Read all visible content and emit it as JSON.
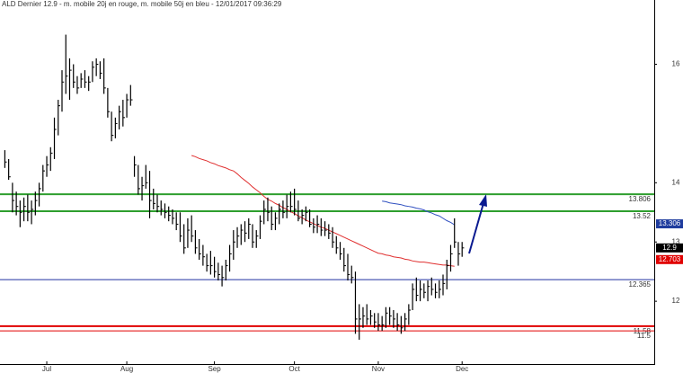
{
  "chart_data": {
    "type": "ohlc",
    "title": "ALD Dernier 12.9 - m. mobile 20j en rouge, m. mobile 50j en bleu - 12/01/2017 09:36:29",
    "categories": [
      null,
      null,
      null,
      null,
      null,
      null,
      null,
      null,
      null,
      null,
      null,
      "Jul",
      null,
      null,
      null,
      null,
      null,
      null,
      null,
      null,
      null,
      null,
      null,
      null,
      null,
      null,
      null,
      null,
      null,
      null,
      null,
      null,
      "Aug",
      null,
      null,
      null,
      null,
      null,
      null,
      null,
      null,
      null,
      null,
      null,
      null,
      null,
      null,
      null,
      null,
      null,
      null,
      null,
      null,
      null,
      null,
      "Sep",
      null,
      null,
      null,
      null,
      null,
      null,
      null,
      null,
      null,
      null,
      null,
      null,
      null,
      null,
      null,
      null,
      null,
      null,
      null,
      null,
      "Oct",
      null,
      null,
      null,
      null,
      null,
      null,
      null,
      null,
      null,
      null,
      null,
      null,
      null,
      null,
      null,
      null,
      null,
      null,
      null,
      null,
      null,
      "Nov",
      null,
      null,
      null,
      null,
      null,
      null,
      null,
      null,
      null,
      null,
      null,
      null,
      null,
      null,
      null,
      null,
      null,
      null,
      null,
      null,
      null,
      "Dec"
    ],
    "high": [
      14.55,
      14.4,
      14.0,
      13.85,
      13.7,
      13.75,
      13.8,
      13.7,
      13.85,
      14.0,
      14.3,
      14.45,
      14.6,
      15.1,
      15.4,
      15.9,
      16.5,
      16.1,
      16.0,
      15.8,
      15.85,
      15.9,
      15.8,
      16.05,
      16.1,
      16.05,
      16.1,
      15.6,
      15.2,
      15.1,
      15.3,
      15.4,
      15.5,
      15.65,
      14.45,
      14.3,
      14.1,
      14.3,
      14.2,
      13.9,
      13.8,
      13.7,
      13.65,
      13.6,
      13.55,
      13.5,
      13.5,
      13.3,
      13.4,
      13.45,
      13.2,
      13.05,
      12.95,
      12.8,
      12.85,
      12.75,
      12.65,
      12.6,
      12.7,
      12.95,
      13.2,
      13.25,
      13.3,
      13.35,
      13.4,
      13.3,
      13.2,
      13.45,
      13.7,
      13.75,
      13.6,
      13.5,
      13.65,
      13.7,
      13.8,
      13.85,
      13.9,
      13.7,
      13.55,
      13.6,
      13.55,
      13.4,
      13.45,
      13.4,
      13.35,
      13.3,
      13.25,
      13.1,
      13.0,
      12.9,
      12.8,
      12.6,
      12.5,
      11.95,
      11.9,
      11.95,
      11.85,
      11.8,
      11.8,
      11.75,
      11.9,
      11.9,
      11.85,
      11.8,
      11.75,
      11.8,
      11.95,
      12.3,
      12.4,
      12.35,
      12.3,
      12.35,
      12.4,
      12.3,
      12.35,
      12.45,
      12.7,
      12.95,
      13.4,
      13.0,
      13.0
    ],
    "low": [
      14.25,
      14.05,
      13.5,
      13.45,
      13.25,
      13.35,
      13.35,
      13.3,
      13.45,
      13.6,
      13.85,
      14.1,
      14.2,
      14.4,
      14.8,
      15.2,
      15.5,
      15.4,
      15.6,
      15.5,
      15.6,
      15.6,
      15.55,
      15.7,
      15.8,
      15.75,
      15.5,
      15.1,
      14.7,
      14.75,
      14.9,
      14.95,
      15.1,
      15.3,
      14.1,
      13.8,
      13.7,
      13.9,
      13.4,
      13.55,
      13.5,
      13.45,
      13.4,
      13.35,
      13.3,
      13.2,
      13.0,
      12.8,
      12.9,
      13.0,
      12.8,
      12.7,
      12.6,
      12.5,
      12.45,
      12.4,
      12.35,
      12.25,
      12.35,
      12.5,
      12.7,
      12.9,
      12.95,
      13.0,
      13.05,
      12.9,
      12.9,
      13.05,
      13.3,
      13.35,
      13.2,
      13.2,
      13.3,
      13.4,
      13.4,
      13.5,
      13.45,
      13.35,
      13.3,
      13.35,
      13.25,
      13.15,
      13.15,
      13.1,
      13.1,
      13.05,
      12.9,
      12.8,
      12.7,
      12.5,
      12.35,
      12.3,
      11.45,
      11.35,
      11.55,
      11.6,
      11.6,
      11.55,
      11.5,
      11.5,
      11.55,
      11.6,
      11.55,
      11.5,
      11.45,
      11.5,
      11.6,
      11.85,
      12.0,
      12.0,
      12.05,
      12.0,
      12.1,
      12.05,
      12.05,
      12.1,
      12.2,
      12.5,
      12.9,
      12.6,
      12.75
    ],
    "close": [
      14.35,
      14.1,
      13.7,
      13.6,
      13.5,
      13.6,
      13.5,
      13.55,
      13.7,
      13.9,
      14.2,
      14.3,
      14.5,
      14.9,
      15.3,
      15.7,
      15.8,
      15.9,
      15.7,
      15.6,
      15.75,
      15.7,
      15.7,
      15.95,
      16.0,
      15.85,
      15.6,
      15.2,
      14.8,
      15.0,
      15.2,
      15.1,
      15.4,
      15.4,
      14.3,
      13.9,
      13.95,
      14.0,
      13.7,
      13.65,
      13.6,
      13.55,
      13.5,
      13.45,
      13.4,
      13.3,
      13.1,
      12.9,
      13.2,
      13.1,
      12.9,
      12.8,
      12.75,
      12.6,
      12.6,
      12.5,
      12.45,
      12.4,
      12.6,
      12.8,
      13.0,
      13.1,
      13.2,
      13.15,
      13.3,
      13.0,
      13.1,
      13.35,
      13.55,
      13.5,
      13.3,
      13.4,
      13.55,
      13.5,
      13.6,
      13.6,
      13.55,
      13.4,
      13.45,
      13.5,
      13.3,
      13.25,
      13.3,
      13.2,
      13.2,
      13.15,
      13.0,
      12.9,
      12.8,
      12.6,
      12.45,
      12.4,
      11.7,
      11.7,
      11.75,
      11.7,
      11.75,
      11.65,
      11.6,
      11.6,
      11.8,
      11.75,
      11.7,
      11.6,
      11.55,
      11.7,
      11.85,
      12.2,
      12.1,
      12.2,
      12.15,
      12.25,
      12.2,
      12.15,
      12.2,
      12.3,
      12.6,
      12.8,
      13.0,
      12.8,
      12.9
    ],
    "color": "#000000",
    "averages": [
      {
        "color": "#e03030",
        "values": [
          null,
          null,
          null,
          null,
          null,
          null,
          null,
          null,
          null,
          null,
          null,
          null,
          null,
          null,
          null,
          null,
          null,
          null,
          null,
          null,
          null,
          null,
          null,
          null,
          null,
          null,
          null,
          null,
          null,
          null,
          null,
          null,
          null,
          null,
          null,
          null,
          null,
          null,
          null,
          null,
          null,
          null,
          null,
          null,
          null,
          null,
          null,
          null,
          null,
          14.46,
          14.44,
          14.41,
          14.39,
          14.37,
          14.34,
          14.32,
          14.29,
          14.27,
          14.25,
          14.22,
          14.2,
          14.15,
          14.09,
          14.04,
          13.99,
          13.93,
          13.88,
          13.83,
          13.77,
          13.72,
          13.69,
          13.65,
          13.62,
          13.58,
          13.55,
          13.51,
          13.48,
          13.44,
          13.41,
          13.37,
          13.34,
          13.31,
          13.28,
          13.25,
          13.23,
          13.2,
          13.17,
          13.14,
          13.11,
          13.08,
          13.05,
          13.02,
          12.99,
          12.96,
          12.93,
          12.9,
          12.87,
          12.84,
          12.81,
          12.8,
          12.78,
          12.77,
          12.75,
          12.74,
          12.73,
          12.71,
          12.7,
          12.68,
          12.67,
          12.66,
          12.66,
          12.65,
          12.64,
          12.63,
          12.62,
          12.61,
          12.61,
          12.6,
          12.59,
          null,
          null
        ]
      },
      {
        "color": "#3050c0",
        "values": [
          null,
          null,
          null,
          null,
          null,
          null,
          null,
          null,
          null,
          null,
          null,
          null,
          null,
          null,
          null,
          null,
          null,
          null,
          null,
          null,
          null,
          null,
          null,
          null,
          null,
          null,
          null,
          null,
          null,
          null,
          null,
          null,
          null,
          null,
          null,
          null,
          null,
          null,
          null,
          null,
          null,
          null,
          null,
          null,
          null,
          null,
          null,
          null,
          null,
          null,
          null,
          null,
          null,
          null,
          null,
          null,
          null,
          null,
          null,
          null,
          null,
          null,
          null,
          null,
          null,
          null,
          null,
          null,
          null,
          null,
          null,
          null,
          null,
          null,
          null,
          null,
          null,
          null,
          null,
          null,
          null,
          null,
          null,
          null,
          null,
          null,
          null,
          null,
          null,
          null,
          null,
          null,
          null,
          null,
          null,
          null,
          null,
          null,
          null,
          13.69,
          13.68,
          13.66,
          13.65,
          13.64,
          13.63,
          13.61,
          13.6,
          13.59,
          13.57,
          13.56,
          13.54,
          13.51,
          13.49,
          13.46,
          13.44,
          13.4,
          13.36,
          13.33,
          13.29,
          null,
          null
        ]
      }
    ],
    "levels": [
      {
        "value": 13.806,
        "color": "#2e9e2e",
        "thick": true
      },
      {
        "value": 13.52,
        "color": "#2e9e2e",
        "thick": true
      },
      {
        "value": 12.365,
        "color": "#2030a0",
        "thick": false
      },
      {
        "value": 11.58,
        "color": "#e00000",
        "thick": true
      },
      {
        "value": 11.5,
        "color": "#e00000",
        "thick": false
      }
    ],
    "price_tags": [
      {
        "value": 13.306,
        "color": "#1f3c9e"
      },
      {
        "value": 12.9,
        "color": "#000000"
      },
      {
        "value": 12.703,
        "color": "#e00000"
      }
    ],
    "ylim": [
      10.94,
      17.085
    ],
    "yticks": [
      16,
      14,
      13,
      12
    ],
    "grid": false
  }
}
